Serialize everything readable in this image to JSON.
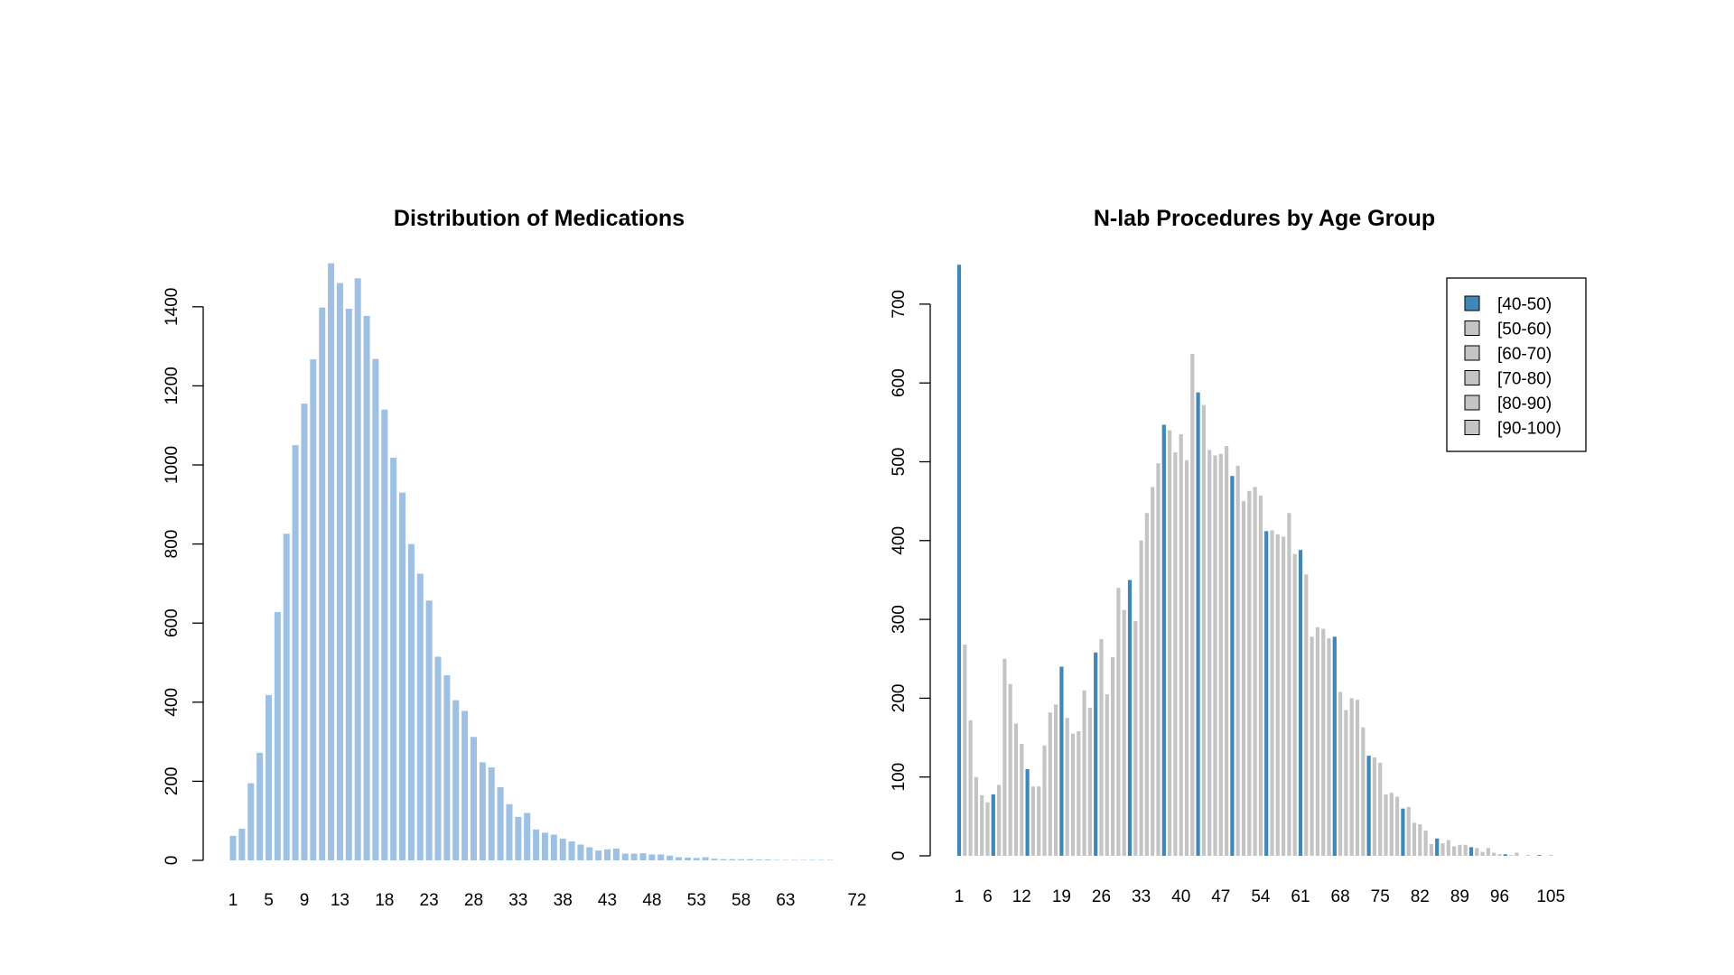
{
  "colors": {
    "left_bar": "#9dc0e3",
    "highlight": "#3e87b8",
    "gray": "#c4c4c4",
    "axis": "#000000"
  },
  "chart_data": [
    {
      "type": "bar",
      "title": "Distribution of Medications",
      "xlabel": "",
      "ylabel": "",
      "ylim": [
        0,
        1500
      ],
      "y_ticks": [
        0,
        200,
        400,
        600,
        800,
        1000,
        1200,
        1400
      ],
      "x_tick_labels": [
        "1",
        "5",
        "9",
        "13",
        "18",
        "23",
        "28",
        "33",
        "38",
        "43",
        "48",
        "53",
        "58",
        "63",
        "72"
      ],
      "categories": [
        "1",
        "2",
        "3",
        "4",
        "5",
        "6",
        "7",
        "8",
        "9",
        "10",
        "11",
        "12",
        "13",
        "14",
        "15",
        "16",
        "17",
        "18",
        "19",
        "20",
        "21",
        "22",
        "23",
        "24",
        "25",
        "26",
        "27",
        "28",
        "29",
        "30",
        "31",
        "32",
        "33",
        "34",
        "35",
        "36",
        "37",
        "38",
        "39",
        "40",
        "41",
        "42",
        "43",
        "44",
        "45",
        "46",
        "47",
        "48",
        "49",
        "50",
        "51",
        "52",
        "53",
        "54",
        "55",
        "56",
        "57",
        "58",
        "59",
        "60",
        "61",
        "62",
        "63",
        "64",
        "65",
        "66",
        "67",
        "68",
        "69",
        "70",
        "72"
      ],
      "values": [
        62,
        80,
        195,
        272,
        418,
        628,
        826,
        1050,
        1155,
        1267,
        1398,
        1510,
        1460,
        1395,
        1472,
        1377,
        1268,
        1140,
        1018,
        930,
        800,
        725,
        657,
        515,
        468,
        405,
        378,
        312,
        248,
        235,
        185,
        142,
        110,
        120,
        78,
        70,
        65,
        55,
        48,
        40,
        33,
        25,
        28,
        30,
        17,
        17,
        18,
        15,
        15,
        12,
        8,
        7,
        6,
        8,
        4,
        3,
        3,
        3,
        3,
        2,
        2,
        1,
        1,
        1,
        1,
        1,
        1,
        1,
        0,
        0,
        0
      ]
    },
    {
      "type": "bar",
      "title": "N-lab Procedures by Age Group",
      "xlabel": "",
      "ylabel": "",
      "ylim": [
        0,
        750
      ],
      "y_ticks": [
        0,
        100,
        200,
        300,
        400,
        500,
        600,
        700
      ],
      "x_tick_labels": [
        "1",
        "6",
        "12",
        "19",
        "26",
        "33",
        "40",
        "47",
        "54",
        "61",
        "68",
        "75",
        "82",
        "89",
        "96",
        "105"
      ],
      "legend": {
        "placement": "top-right",
        "items": [
          {
            "label": "[40-50)",
            "highlight": true
          },
          {
            "label": "[50-60)",
            "highlight": false
          },
          {
            "label": "[60-70)",
            "highlight": false
          },
          {
            "label": "[70-80)",
            "highlight": false
          },
          {
            "label": "[80-90)",
            "highlight": false
          },
          {
            "label": "[90-100)",
            "highlight": false
          }
        ]
      },
      "highlight_every": 6,
      "values": [
        750,
        268,
        172,
        100,
        77,
        68,
        78,
        90,
        250,
        218,
        168,
        142,
        110,
        88,
        88,
        140,
        182,
        192,
        240,
        175,
        155,
        158,
        210,
        188,
        258,
        275,
        205,
        252,
        340,
        312,
        350,
        298,
        400,
        435,
        468,
        498,
        547,
        540,
        512,
        535,
        502,
        637,
        588,
        572,
        515,
        508,
        510,
        520,
        482,
        495,
        450,
        463,
        468,
        457,
        412,
        413,
        408,
        405,
        435,
        383,
        388,
        357,
        278,
        290,
        288,
        276,
        278,
        208,
        185,
        200,
        198,
        163,
        127,
        125,
        118,
        78,
        80,
        75,
        60,
        62,
        42,
        40,
        32,
        15,
        22,
        16,
        20,
        12,
        14,
        14,
        11,
        10,
        5,
        10,
        4,
        2,
        2,
        1,
        4,
        0,
        1,
        0,
        1,
        0,
        1,
        0
      ]
    }
  ]
}
